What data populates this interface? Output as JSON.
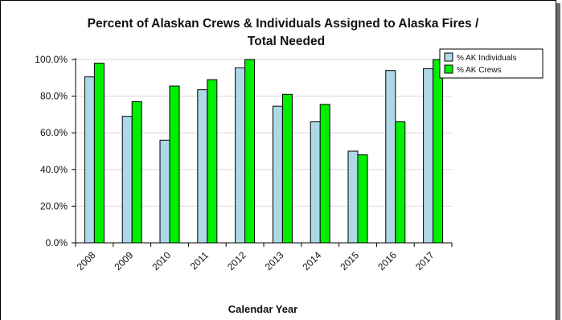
{
  "chart_data": {
    "type": "bar",
    "title_line1": "Percent of Alaskan Crews & Individuals Assigned to Alaska Fires /",
    "title_line2": "Total Needed",
    "xlabel": "Calendar Year",
    "ylabel": "",
    "categories": [
      "2008",
      "2009",
      "2010",
      "2011",
      "2012",
      "2013",
      "2014",
      "2015",
      "2016",
      "2017"
    ],
    "series": [
      {
        "name": "% AK Individuals",
        "color": "#add8e6",
        "values": [
          90.5,
          69,
          56,
          83.5,
          95.5,
          74.5,
          66,
          50,
          94,
          95
        ]
      },
      {
        "name": "% AK Crews",
        "color": "#00ee00",
        "values": [
          98,
          77,
          85.5,
          89,
          100,
          81,
          75.5,
          48,
          66,
          100
        ]
      }
    ],
    "ylim": [
      0,
      100
    ],
    "yticks": [
      "0.0%",
      "20.0%",
      "40.0%",
      "60.0%",
      "80.0%",
      "100.0%"
    ],
    "grid": true,
    "legend_position": "top-right"
  }
}
